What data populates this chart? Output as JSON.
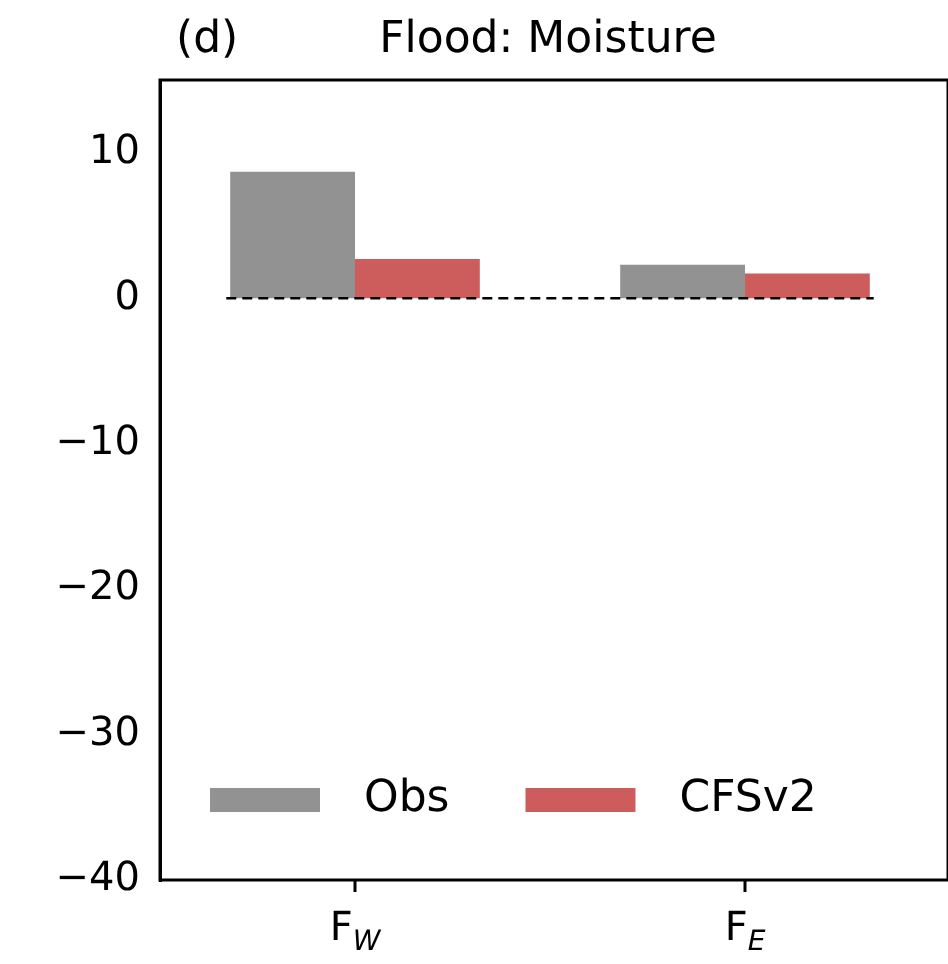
{
  "chart_data": {
    "type": "bar",
    "title": "Flood: Moisture",
    "annotations": [
      "(d)"
    ],
    "categories": [
      "F$_{W}$",
      "F$_{E}$"
    ],
    "series": [
      {
        "name": "Obs",
        "color": "#929292",
        "values": [
          8.7,
          2.3
        ]
      },
      {
        "name": "CFSv2",
        "color": "#cd5c5c",
        "values": [
          2.7,
          1.7
        ]
      }
    ],
    "ylim": [
      -40,
      15
    ],
    "yticks": [
      -40,
      -30,
      -20,
      -10,
      0,
      10
    ],
    "ref_lines": [
      {
        "axis": "y",
        "value": 0,
        "color": "#000000",
        "line_style": "dashed"
      }
    ],
    "legend": "bottom",
    "grid": false
  }
}
